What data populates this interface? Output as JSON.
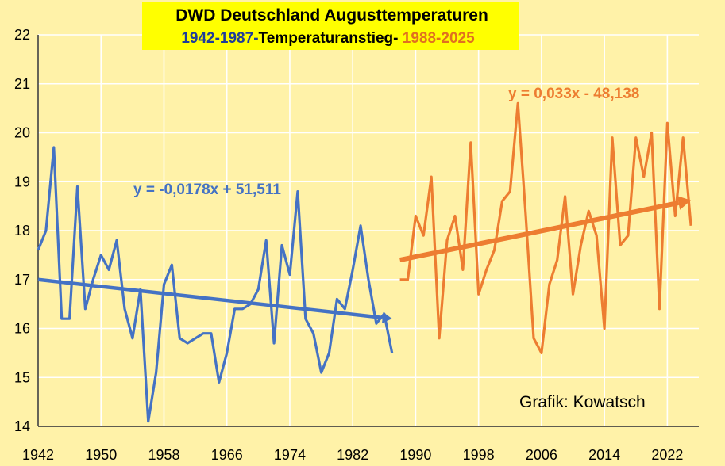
{
  "chart_data": {
    "type": "line",
    "title": "DWD Deutschland Augusttemperaturen",
    "subtitle_parts": [
      {
        "text": "1942-1987-",
        "color": "#1f3d99"
      },
      {
        "text": "Temperaturanstieg- ",
        "color": "#000000"
      },
      {
        "text": "1988-2025",
        "color": "#e07020"
      }
    ],
    "xlabel": "",
    "ylabel": "",
    "xlim": [
      1942,
      2026
    ],
    "ylim": [
      14,
      22
    ],
    "x_ticks": [
      1942,
      1950,
      1958,
      1966,
      1974,
      1982,
      1990,
      1998,
      2006,
      2014,
      2022
    ],
    "y_ticks": [
      14,
      15,
      16,
      17,
      18,
      19,
      20,
      21,
      22
    ],
    "grid": true,
    "series": [
      {
        "color": "#4472c4",
        "x": [
          1942,
          1943,
          1944,
          1945,
          1946,
          1947,
          1948,
          1949,
          1950,
          1951,
          1952,
          1953,
          1954,
          1955,
          1956,
          1957,
          1958,
          1959,
          1960,
          1961,
          1962,
          1963,
          1964,
          1965,
          1966,
          1967,
          1968,
          1969,
          1970,
          1971,
          1972,
          1973,
          1974,
          1975,
          1976,
          1977,
          1978,
          1979,
          1980,
          1981,
          1982,
          1983,
          1984,
          1985,
          1986,
          1987
        ],
        "y": [
          17.6,
          18.0,
          19.7,
          16.2,
          16.2,
          18.9,
          16.4,
          17.0,
          17.5,
          17.2,
          17.8,
          16.4,
          15.8,
          16.8,
          14.1,
          15.1,
          16.9,
          17.3,
          15.8,
          15.7,
          15.8,
          15.9,
          15.9,
          14.9,
          15.5,
          16.4,
          16.4,
          16.5,
          16.8,
          17.8,
          15.7,
          17.7,
          17.1,
          18.8,
          16.2,
          15.9,
          15.1,
          15.5,
          16.6,
          16.4,
          17.2,
          18.1,
          17.0,
          16.1,
          16.3,
          15.5
        ]
      },
      {
        "color": "#ed7d31",
        "x": [
          1988,
          1989,
          1990,
          1991,
          1992,
          1993,
          1994,
          1995,
          1996,
          1997,
          1998,
          1999,
          2000,
          2001,
          2002,
          2003,
          2004,
          2005,
          2006,
          2007,
          2008,
          2009,
          2010,
          2011,
          2012,
          2013,
          2014,
          2015,
          2016,
          2017,
          2018,
          2019,
          2020,
          2021,
          2022,
          2023,
          2024,
          2025
        ],
        "y": [
          17.0,
          17.0,
          18.3,
          17.9,
          19.1,
          15.8,
          17.8,
          18.3,
          17.2,
          19.8,
          16.7,
          17.2,
          17.6,
          18.6,
          18.8,
          20.6,
          18.3,
          15.8,
          15.5,
          16.9,
          17.4,
          18.7,
          16.7,
          17.7,
          18.4,
          17.9,
          16.0,
          19.9,
          17.7,
          17.9,
          19.9,
          19.1,
          20.0,
          16.4,
          20.2,
          18.3,
          19.9,
          18.1
        ]
      }
    ],
    "trends": [
      {
        "label": "y = -0,0178x + 51,511",
        "color": "#4472c4",
        "x_start": 1942,
        "x_end": 1987,
        "slope": -0.0178,
        "y_start": 17.0,
        "y_end": 16.2
      },
      {
        "label": "y = 0,033x - 48,138",
        "color": "#ed7d31",
        "x_start": 1988,
        "x_end": 2025,
        "slope": 0.033,
        "y_start": 17.4,
        "y_end": 18.62
      }
    ],
    "annotation": "Grafik: Kowatsch"
  },
  "colors": {
    "plot_background": "#fff2a8",
    "grid": "#ffffff",
    "title_background": "#ffff00",
    "axis": "#000000"
  }
}
